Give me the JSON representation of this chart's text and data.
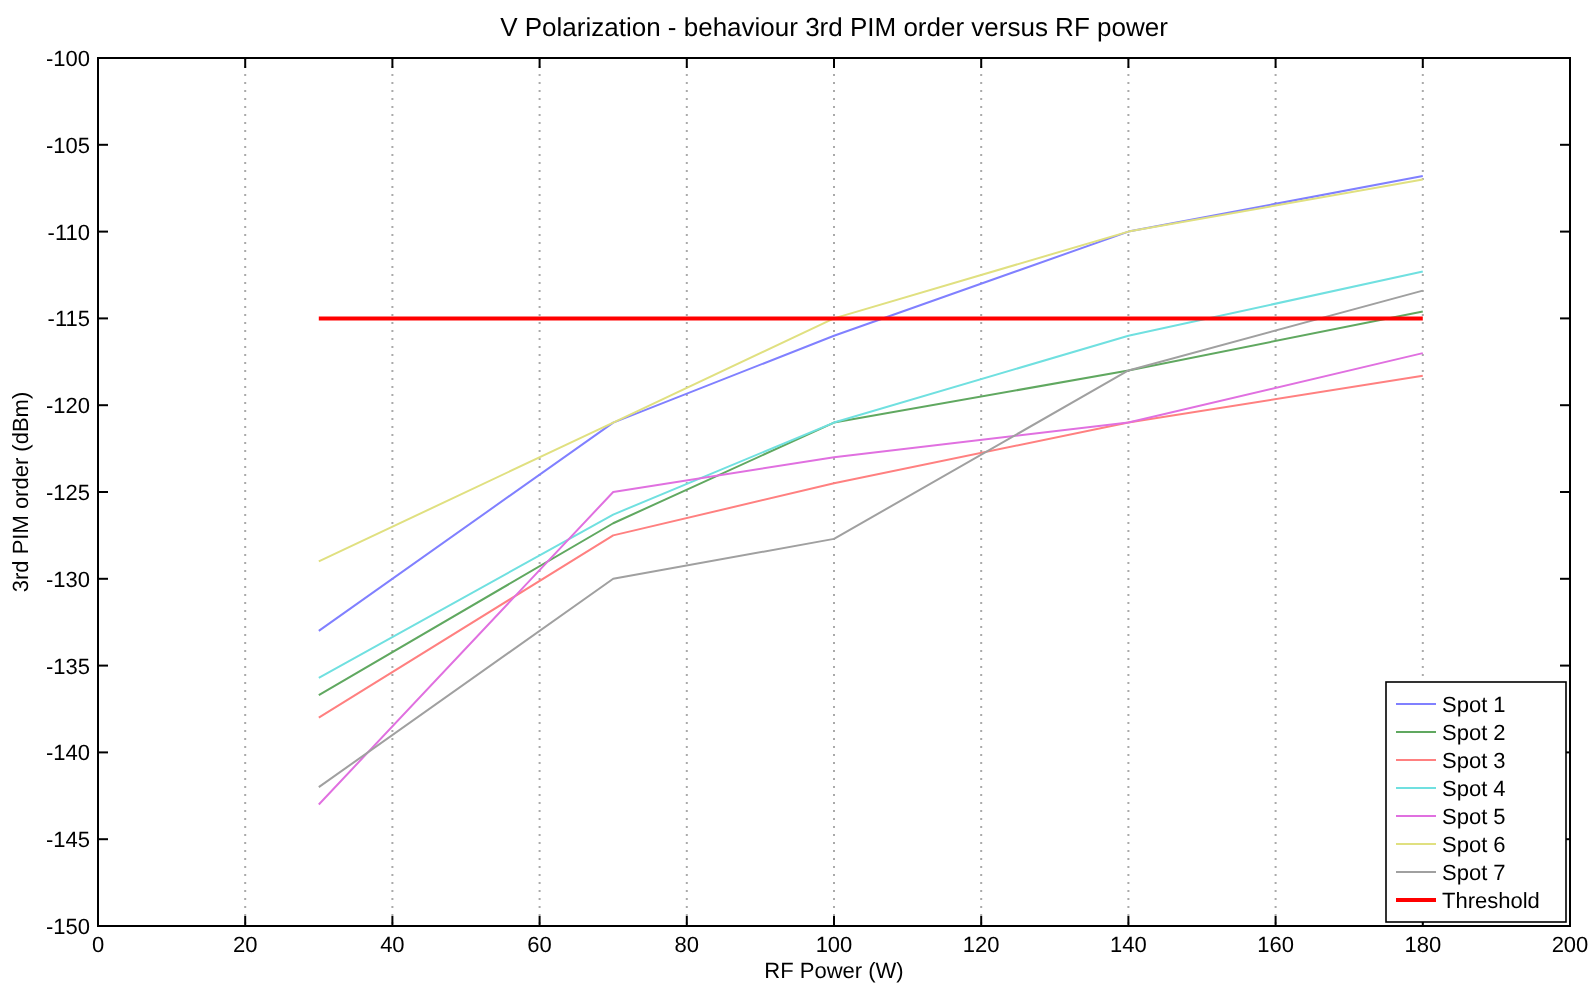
{
  "chart_data": {
    "type": "line",
    "title": "V Polarization - behaviour 3rd PIM order versus RF power",
    "xlabel": "RF Power (W)",
    "ylabel": "3rd PIM order (dBm)",
    "x": [
      30,
      70,
      100,
      140,
      180
    ],
    "xlim": [
      0,
      200
    ],
    "xticks": [
      0,
      20,
      40,
      60,
      80,
      100,
      120,
      140,
      160,
      180,
      200
    ],
    "ylim": [
      -150,
      -100
    ],
    "yticks": [
      -150,
      -145,
      -140,
      -135,
      -130,
      -125,
      -120,
      -115,
      -110,
      -105,
      -100
    ],
    "grid": "x",
    "legend": "bottom right",
    "line_style": "solid",
    "marker": "none",
    "series": [
      {
        "name": "Spot 1",
        "color": "#8080ff",
        "values": [
          -133,
          -121,
          -116,
          -110,
          -106.8
        ]
      },
      {
        "name": "Spot 2",
        "color": "#60a860",
        "values": [
          -136.7,
          -126.8,
          -121,
          -118,
          -114.6
        ]
      },
      {
        "name": "Spot 3",
        "color": "#ff8080",
        "values": [
          -138,
          -127.5,
          -124.5,
          -121,
          -118.3
        ]
      },
      {
        "name": "Spot 4",
        "color": "#70e0e0",
        "values": [
          -135.7,
          -126.3,
          -121,
          -116,
          -112.3
        ]
      },
      {
        "name": "Spot 5",
        "color": "#e070e0",
        "values": [
          -143,
          -125,
          -123,
          -121,
          -117
        ]
      },
      {
        "name": "Spot 6",
        "color": "#e0e080",
        "values": [
          -129,
          -121,
          -115,
          -110,
          -107
        ]
      },
      {
        "name": "Spot 7",
        "color": "#a0a0a0",
        "values": [
          -142,
          -130,
          -127.7,
          -118,
          -113.4
        ]
      },
      {
        "name": "Threshold",
        "color": "#ff0000",
        "x": [
          30,
          180
        ],
        "values": [
          -115,
          -115
        ]
      }
    ]
  }
}
